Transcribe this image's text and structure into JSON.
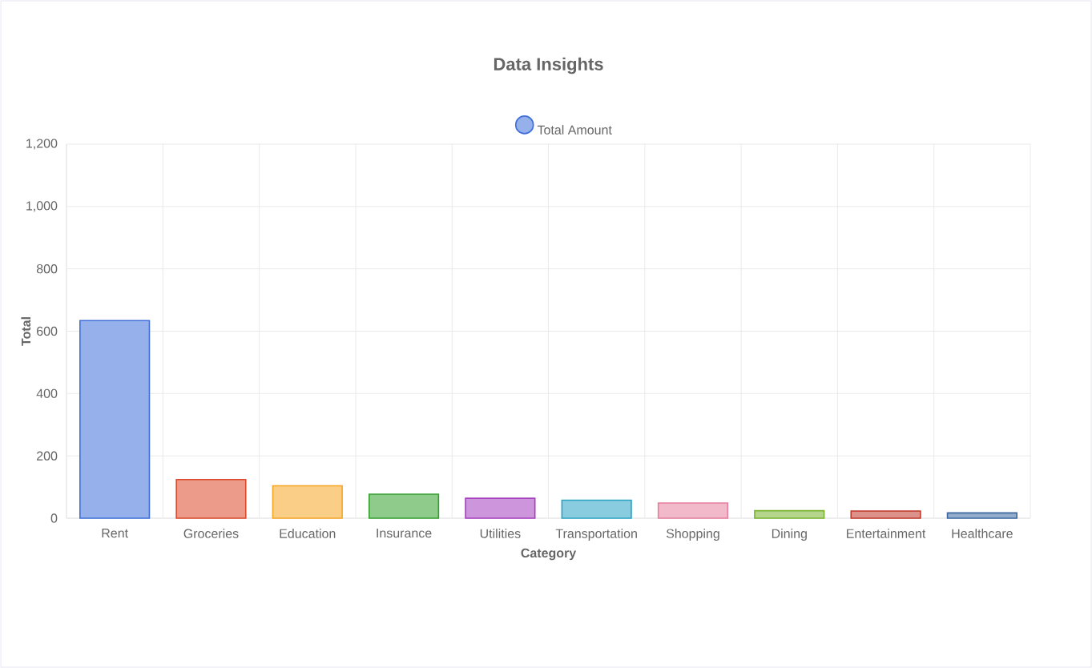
{
  "chart_data": {
    "type": "bar",
    "title": "Data Insights",
    "xlabel": "Category",
    "ylabel": "Total",
    "categories": [
      "Rent",
      "Groceries",
      "Education",
      "Insurance",
      "Utilities",
      "Transportation",
      "Shopping",
      "Dining",
      "Entertainment",
      "Healthcare"
    ],
    "series": [
      {
        "name": "Total Amount",
        "values": [
          634,
          124,
          104,
          77,
          64,
          58,
          49,
          24,
          23,
          17
        ],
        "colors": [
          "#3e6fd8",
          "#dc4a2a",
          "#f5a623",
          "#33a02c",
          "#a43fbd",
          "#2aa2c4",
          "#e57f9e",
          "#7ab32e",
          "#c0392b",
          "#3a6aa0"
        ]
      }
    ],
    "ylim": [
      0,
      1200
    ],
    "yticks": [
      0,
      200,
      400,
      600,
      800,
      {
        "value": 1000,
        "label": "1,000"
      },
      {
        "value": 1200,
        "label": "1,200"
      }
    ],
    "grid": true,
    "legend": "top"
  }
}
